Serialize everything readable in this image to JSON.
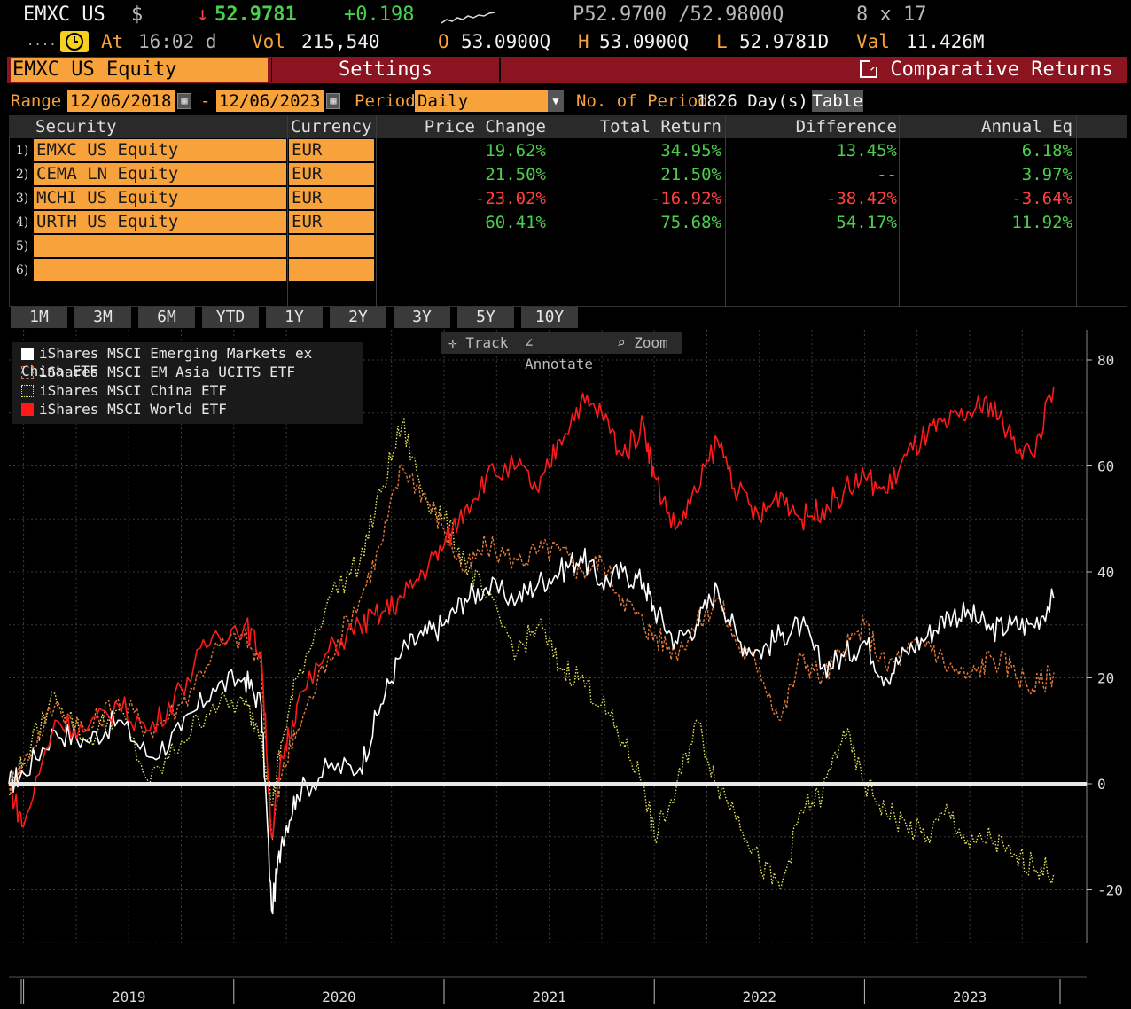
{
  "header": {
    "ticker": "EMXC US",
    "currency_symbol": "$",
    "arrow": "↓",
    "last_price": "52.9781",
    "change": "+0.198",
    "bid_ask": "P52.9700 /52.9800Q",
    "size": "8 x 17",
    "at_label": "At",
    "time": "16:02 d",
    "vol_label": "Vol",
    "volume": "215,540",
    "open_label": "O",
    "open": "53.0900Q",
    "high_label": "H",
    "high": "53.0900Q",
    "low_label": "L",
    "low": "52.9781D",
    "val_label": "Val",
    "value": "11.426M"
  },
  "titlebar": {
    "security": "EMXC US Equity",
    "settings": "Settings",
    "comparative": "Comparative Returns"
  },
  "range": {
    "range_label": "Range",
    "start": "12/06/2018",
    "dash": "-",
    "end": "12/06/2023",
    "period_label": "Period",
    "period": "Daily",
    "num_period_label": "No. of Period",
    "num_period": "1826 Day(s)",
    "table_button": "Table"
  },
  "table": {
    "headers": [
      "Security",
      "Currency",
      "Price Change",
      "Total Return",
      "Difference",
      "Annual Eq"
    ],
    "rows": [
      {
        "num": "1)",
        "security": "EMXC US Equity",
        "currency": "EUR",
        "price_change": "19.62%",
        "total_return": "34.95%",
        "difference": "13.45%",
        "annual_eq": "6.18%"
      },
      {
        "num": "2)",
        "security": "CEMA LN Equity",
        "currency": "EUR",
        "price_change": "21.50%",
        "total_return": "21.50%",
        "difference": "--",
        "annual_eq": "3.97%"
      },
      {
        "num": "3)",
        "security": "MCHI US Equity",
        "currency": "EUR",
        "price_change": "-23.02%",
        "total_return": "-16.92%",
        "difference": "-38.42%",
        "annual_eq": "-3.64%"
      },
      {
        "num": "4)",
        "security": "URTH US Equity",
        "currency": "EUR",
        "price_change": "60.41%",
        "total_return": "75.68%",
        "difference": "54.17%",
        "annual_eq": "11.92%"
      },
      {
        "num": "5)",
        "security": "",
        "currency": ""
      },
      {
        "num": "6)",
        "security": "",
        "currency": ""
      }
    ],
    "row_colors": [
      "green",
      "green",
      "red",
      "green"
    ]
  },
  "periods": [
    "1M",
    "3M",
    "6M",
    "YTD",
    "1Y",
    "2Y",
    "3Y",
    "5Y",
    "10Y"
  ],
  "tools": {
    "track": "Track",
    "annotate": "Annotate",
    "zoom": "Zoom"
  },
  "colors": {
    "amber": "#f7a23b",
    "maroon": "#8b1420",
    "green": "#4bd04b",
    "red": "#ff4040"
  },
  "chart_data": {
    "type": "line",
    "xlabel": "",
    "ylabel": "",
    "ylim": [
      -30,
      80
    ],
    "xlim": [
      2018.93,
      2023.93
    ],
    "yticks": [
      "80",
      "60",
      "40",
      "20",
      "0",
      "-20"
    ],
    "ytick_values": [
      80,
      60,
      40,
      20,
      0,
      -20
    ],
    "xticks": [
      "2019",
      "2020",
      "2021",
      "2022",
      "2023"
    ],
    "xtick_centers": [
      2019.5,
      2020.5,
      2021.5,
      2022.5,
      2023.5
    ],
    "year_boundaries": [
      2019,
      2020,
      2021,
      2022,
      2023
    ],
    "grid": true,
    "legend_position": "top-left",
    "baseline": 0,
    "series": [
      {
        "name": "iShares MSCI Emerging Markets ex China ETF",
        "color": "#ffffff",
        "style": "solid",
        "x": [
          2018.93,
          2019.0,
          2019.15,
          2019.3,
          2019.45,
          2019.6,
          2019.75,
          2019.9,
          2020.05,
          2020.13,
          2020.18,
          2020.23,
          2020.3,
          2020.45,
          2020.6,
          2020.7,
          2020.8,
          2020.9,
          2021.0,
          2021.1,
          2021.2,
          2021.35,
          2021.45,
          2021.55,
          2021.65,
          2021.75,
          2021.85,
          2021.95,
          2022.0,
          2022.1,
          2022.2,
          2022.3,
          2022.4,
          2022.5,
          2022.6,
          2022.7,
          2022.8,
          2022.9,
          2023.0,
          2023.1,
          2023.2,
          2023.3,
          2023.4,
          2023.5,
          2023.6,
          2023.7,
          2023.8,
          2023.9
        ],
        "y": [
          0,
          2,
          10,
          8,
          12,
          5,
          10,
          18,
          20,
          15,
          -24,
          -10,
          -2,
          3,
          3,
          15,
          25,
          28,
          30,
          35,
          37,
          35,
          38,
          40,
          43,
          38,
          40,
          38,
          33,
          27,
          30,
          37,
          27,
          25,
          28,
          30,
          22,
          24,
          27,
          20,
          25,
          28,
          32,
          32,
          29,
          30,
          30,
          35
        ]
      },
      {
        "name": "iShares MSCI EM Asia UCITS ETF",
        "color": "#e0783a",
        "style": "dashed",
        "x": [
          2018.93,
          2019.0,
          2019.15,
          2019.3,
          2019.45,
          2019.6,
          2019.75,
          2019.9,
          2020.05,
          2020.13,
          2020.18,
          2020.23,
          2020.3,
          2020.45,
          2020.6,
          2020.7,
          2020.8,
          2020.9,
          2021.0,
          2021.1,
          2021.2,
          2021.35,
          2021.45,
          2021.55,
          2021.65,
          2021.75,
          2021.85,
          2021.95,
          2022.0,
          2022.1,
          2022.2,
          2022.3,
          2022.4,
          2022.5,
          2022.6,
          2022.7,
          2022.8,
          2022.9,
          2023.0,
          2023.1,
          2023.2,
          2023.3,
          2023.4,
          2023.5,
          2023.6,
          2023.7,
          2023.8,
          2023.9
        ],
        "y": [
          0,
          4,
          15,
          10,
          16,
          10,
          15,
          25,
          28,
          22,
          -10,
          2,
          10,
          24,
          35,
          45,
          60,
          55,
          48,
          40,
          45,
          42,
          44,
          44,
          40,
          42,
          35,
          30,
          28,
          25,
          30,
          35,
          26,
          22,
          12,
          24,
          20,
          25,
          30,
          22,
          25,
          27,
          22,
          20,
          24,
          22,
          18,
          21
        ]
      },
      {
        "name": "iShares MSCI China ETF",
        "color": "#e8e85a",
        "style": "dotted",
        "x": [
          2018.93,
          2019.0,
          2019.15,
          2019.3,
          2019.45,
          2019.6,
          2019.75,
          2019.9,
          2020.05,
          2020.13,
          2020.18,
          2020.23,
          2020.3,
          2020.45,
          2020.6,
          2020.7,
          2020.8,
          2020.9,
          2021.0,
          2021.1,
          2021.2,
          2021.35,
          2021.45,
          2021.55,
          2021.65,
          2021.75,
          2021.85,
          2021.95,
          2022.0,
          2022.1,
          2022.2,
          2022.3,
          2022.4,
          2022.5,
          2022.6,
          2022.7,
          2022.8,
          2022.9,
          2023.0,
          2023.1,
          2023.2,
          2023.3,
          2023.4,
          2023.5,
          2023.6,
          2023.7,
          2023.8,
          2023.9
        ],
        "y": [
          -2,
          4,
          17,
          8,
          14,
          0,
          8,
          15,
          15,
          10,
          -4,
          8,
          20,
          35,
          42,
          55,
          68,
          55,
          50,
          42,
          35,
          25,
          30,
          22,
          20,
          15,
          8,
          0,
          -10,
          -2,
          12,
          0,
          -6,
          -15,
          -20,
          -5,
          -2,
          10,
          0,
          -5,
          -8,
          -10,
          -5,
          -12,
          -10,
          -14,
          -15,
          -17
        ]
      },
      {
        "name": "iShares MSCI World ETF",
        "color": "#ff1a1a",
        "style": "solid",
        "x": [
          2018.93,
          2019.0,
          2019.15,
          2019.3,
          2019.45,
          2019.6,
          2019.75,
          2019.9,
          2020.05,
          2020.13,
          2020.18,
          2020.23,
          2020.3,
          2020.45,
          2020.6,
          2020.7,
          2020.8,
          2020.9,
          2021.0,
          2021.1,
          2021.2,
          2021.35,
          2021.45,
          2021.55,
          2021.65,
          2021.75,
          2021.85,
          2021.95,
          2022.0,
          2022.1,
          2022.2,
          2022.3,
          2022.4,
          2022.5,
          2022.6,
          2022.7,
          2022.8,
          2022.9,
          2023.0,
          2023.1,
          2023.2,
          2023.3,
          2023.4,
          2023.5,
          2023.6,
          2023.7,
          2023.8,
          2023.9
        ],
        "y": [
          0,
          -8,
          12,
          10,
          15,
          10,
          18,
          28,
          30,
          25,
          -10,
          5,
          15,
          25,
          30,
          32,
          35,
          40,
          45,
          52,
          58,
          60,
          55,
          65,
          72,
          70,
          62,
          68,
          58,
          48,
          55,
          65,
          55,
          50,
          55,
          50,
          52,
          55,
          58,
          55,
          62,
          66,
          68,
          70,
          72,
          65,
          62,
          75
        ]
      }
    ]
  }
}
